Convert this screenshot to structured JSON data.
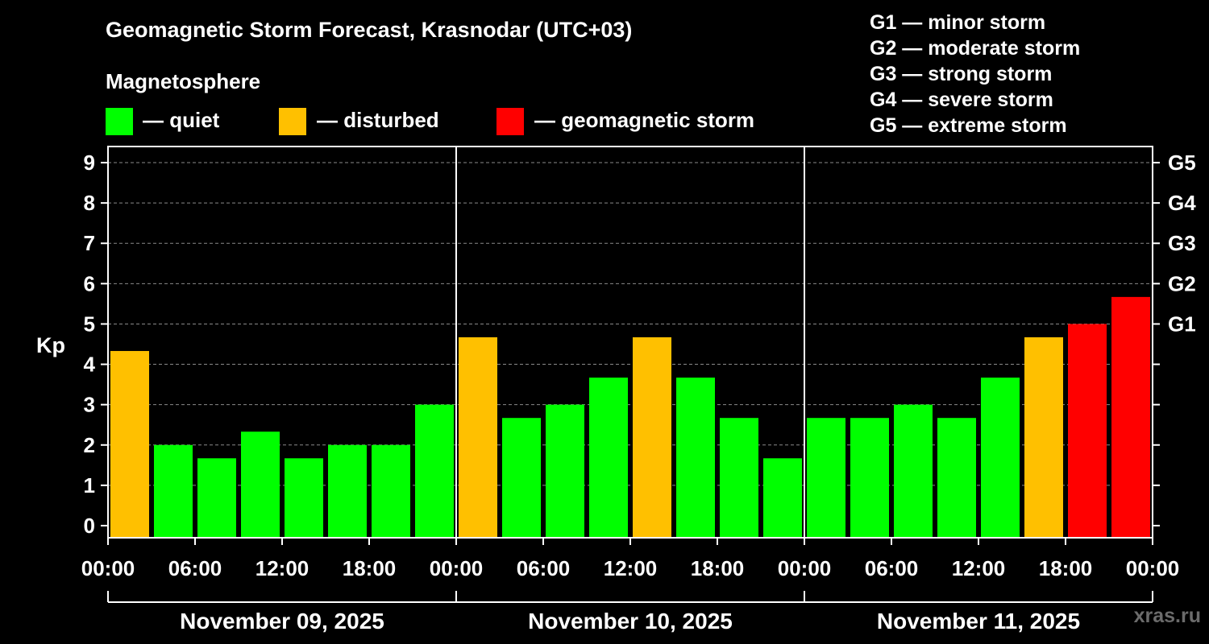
{
  "title": "Geomagnetic Storm Forecast, Krasnodar (UTC+03)",
  "watermark": "xras.ru",
  "legend": {
    "section_title": "Magnetosphere",
    "items": [
      {
        "label": "— quiet",
        "color": "#00ff00"
      },
      {
        "label": "— disturbed",
        "color": "#ffc000"
      },
      {
        "label": "— geomagnetic storm",
        "color": "#ff0000"
      }
    ]
  },
  "g_scale_legend": [
    "G1 — minor storm",
    "G2 — moderate storm",
    "G3 — strong storm",
    "G4 — severe storm",
    "G5 — extreme storm"
  ],
  "chart_data": {
    "type": "bar",
    "ylabel": "Kp",
    "ylim": [
      -0.3,
      9.4
    ],
    "yticks": [
      0,
      1,
      2,
      3,
      4,
      5,
      6,
      7,
      8,
      9
    ],
    "right_axis": [
      {
        "value": 5,
        "label": "G1"
      },
      {
        "value": 6,
        "label": "G2"
      },
      {
        "value": 7,
        "label": "G3"
      },
      {
        "value": 8,
        "label": "G4"
      },
      {
        "value": 9,
        "label": "G5"
      }
    ],
    "grid": true,
    "hours_per_bar": 3,
    "time_tick_labels": [
      "00:00",
      "06:00",
      "12:00",
      "18:00",
      "00:00",
      "06:00",
      "12:00",
      "18:00",
      "00:00",
      "06:00",
      "12:00",
      "18:00",
      "00:00"
    ],
    "days": [
      "November 09, 2025",
      "November 10, 2025",
      "November 11, 2025"
    ],
    "values": [
      4.33,
      2.0,
      1.67,
      2.33,
      1.67,
      2.0,
      2.0,
      3.0,
      4.67,
      2.67,
      3.0,
      3.67,
      4.67,
      3.67,
      2.67,
      1.67,
      2.67,
      2.67,
      3.0,
      2.67,
      3.67,
      4.67,
      5.0,
      5.67
    ],
    "colors": {
      "quiet": "#00ff00",
      "disturbed": "#ffc000",
      "storm": "#ff0000"
    }
  }
}
